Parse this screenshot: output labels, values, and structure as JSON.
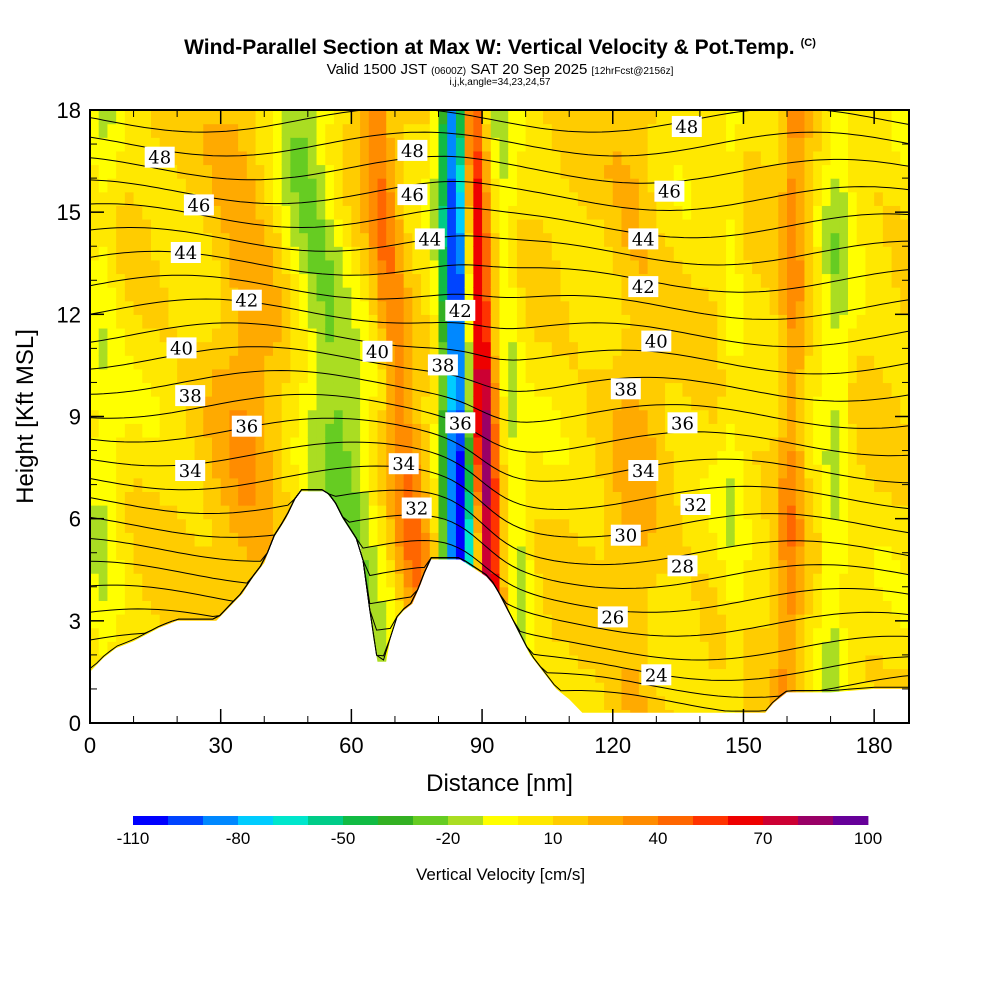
{
  "header": {
    "title": "Wind-Parallel Section at Max W: Vertical Velocity & Pot.Temp.",
    "title_corner": "(C)",
    "valid_pre": "Valid 1500 JST",
    "valid_utc": "(0600Z)",
    "valid_date": "SAT 20 Sep 2025",
    "forecast": "[12hrFcst@2156z]",
    "params": "i,j,k,angle=34,23,24,57"
  },
  "chart_data": {
    "type": "heatmap",
    "xlabel": "Distance [nm]",
    "ylabel": "Height [Kft MSL]",
    "xlim": [
      0,
      188
    ],
    "ylim": [
      0,
      18
    ],
    "x_ticks": [
      0,
      30,
      60,
      90,
      120,
      150,
      180
    ],
    "y_ticks": [
      0,
      3,
      6,
      9,
      12,
      15,
      18
    ],
    "colorbar": {
      "label": "Vertical Velocity [cm/s]",
      "tick_values": [
        -110,
        -80,
        -50,
        -20,
        10,
        40,
        70,
        100
      ],
      "levels": [
        -110,
        -100,
        -90,
        -80,
        -70,
        -60,
        -50,
        -40,
        -30,
        -20,
        -10,
        0,
        10,
        20,
        30,
        40,
        50,
        60,
        70,
        80,
        90,
        100
      ],
      "colors": [
        "#0000ff",
        "#0044ff",
        "#0088ff",
        "#00ccff",
        "#00e6cc",
        "#00cc88",
        "#11bb44",
        "#33b022",
        "#66cc22",
        "#aadd22",
        "#ffff00",
        "#ffe800",
        "#ffcc00",
        "#ffaa00",
        "#ff8c00",
        "#ff6600",
        "#ff3300",
        "#ee0000",
        "#cc0033",
        "#990066",
        "#660099"
      ]
    },
    "terrain_kft": [
      [
        0,
        1.5
      ],
      [
        3,
        1.9
      ],
      [
        6,
        2.2
      ],
      [
        10,
        2.4
      ],
      [
        13,
        2.6
      ],
      [
        16,
        2.8
      ],
      [
        20,
        3.0
      ],
      [
        26,
        3.0
      ],
      [
        29,
        3.0
      ],
      [
        32,
        3.4
      ],
      [
        35,
        3.8
      ],
      [
        37,
        4.2
      ],
      [
        40,
        4.7
      ],
      [
        42,
        5.4
      ],
      [
        45,
        6.0
      ],
      [
        48,
        6.8
      ],
      [
        54,
        6.8
      ],
      [
        56,
        6.5
      ],
      [
        58,
        6.0
      ],
      [
        60,
        5.6
      ],
      [
        62,
        5.2
      ],
      [
        63,
        4.5
      ],
      [
        64,
        3.5
      ],
      [
        65,
        2.5
      ],
      [
        66,
        1.8
      ],
      [
        68,
        1.8
      ],
      [
        69,
        2.5
      ],
      [
        70,
        3.0
      ],
      [
        72,
        3.3
      ],
      [
        74,
        3.5
      ],
      [
        76,
        4.1
      ],
      [
        78,
        4.8
      ],
      [
        82,
        4.8
      ],
      [
        85,
        4.8
      ],
      [
        91,
        4.3
      ],
      [
        93,
        4.0
      ],
      [
        95,
        3.5
      ],
      [
        97,
        3.0
      ],
      [
        99,
        2.5
      ],
      [
        101,
        2.0
      ],
      [
        104,
        1.5
      ],
      [
        107,
        1.0
      ],
      [
        110,
        0.7
      ],
      [
        113,
        0.3
      ],
      [
        120,
        0.3
      ],
      [
        130,
        0.3
      ],
      [
        150,
        0.3
      ],
      [
        155,
        0.3
      ],
      [
        157,
        0.6
      ],
      [
        160,
        0.9
      ],
      [
        170,
        0.9
      ],
      [
        180,
        1.0
      ],
      [
        188,
        1.0
      ]
    ],
    "features": [
      {
        "x_base": 85,
        "x_top": 84,
        "half_width": 3.5,
        "w": -115
      },
      {
        "x_base": 93,
        "x_top": 87,
        "half_width": 3.0,
        "w": 80
      },
      {
        "x_base": 65,
        "x_top": 48,
        "half_width": 7.0,
        "w": -30
      },
      {
        "x_base": 78,
        "x_top": 65,
        "half_width": 4.0,
        "w": 30
      },
      {
        "x_base": 37,
        "x_top": 35,
        "half_width": 8.0,
        "w": 18
      },
      {
        "x_base": 3,
        "x_top": 3,
        "half_width": 4.0,
        "w": -15
      },
      {
        "x_base": 100,
        "x_top": 94,
        "half_width": 3.0,
        "w": -18
      },
      {
        "x_base": 160,
        "x_top": 162,
        "half_width": 3.0,
        "w": 25
      },
      {
        "x_base": 148,
        "x_top": 147,
        "half_width": 2.5,
        "w": -12
      },
      {
        "x_base": 170,
        "x_top": 172,
        "half_width": 3.5,
        "w": -20
      },
      {
        "x_base": 125,
        "x_top": 125,
        "half_width": 6.0,
        "w": 12
      }
    ],
    "theta_left_kft": [
      1.6,
      2.3,
      3.0,
      3.7,
      4.4,
      5.1,
      5.8,
      6.5,
      7.2,
      7.9,
      8.6,
      9.3,
      10.0,
      10.7,
      11.4,
      12.1,
      12.8,
      13.5,
      14.2,
      14.9,
      15.6,
      16.3,
      17.0,
      17.7
    ],
    "theta_right_kft": [
      0.6,
      1.1,
      1.6,
      2.2,
      2.9,
      3.6,
      4.3,
      5.0,
      5.8,
      6.6,
      7.4,
      8.2,
      9.0,
      9.8,
      10.6,
      11.4,
      12.2,
      13.0,
      13.8,
      14.6,
      15.4,
      16.2,
      17.0,
      17.7
    ],
    "theta_labels": [
      {
        "text": "48",
        "x": 16,
        "y": 16.6
      },
      {
        "text": "46",
        "x": 25,
        "y": 15.2
      },
      {
        "text": "44",
        "x": 22,
        "y": 13.8
      },
      {
        "text": "42",
        "x": 36,
        "y": 12.4
      },
      {
        "text": "40",
        "x": 21,
        "y": 11.0
      },
      {
        "text": "38",
        "x": 23,
        "y": 9.6
      },
      {
        "text": "36",
        "x": 36,
        "y": 8.7
      },
      {
        "text": "34",
        "x": 23,
        "y": 7.4
      },
      {
        "text": "48",
        "x": 74,
        "y": 16.8
      },
      {
        "text": "46",
        "x": 74,
        "y": 15.5
      },
      {
        "text": "44",
        "x": 78,
        "y": 14.2
      },
      {
        "text": "42",
        "x": 85,
        "y": 12.1
      },
      {
        "text": "40",
        "x": 66,
        "y": 10.9
      },
      {
        "text": "38",
        "x": 81,
        "y": 10.5
      },
      {
        "text": "36",
        "x": 85,
        "y": 8.8
      },
      {
        "text": "34",
        "x": 72,
        "y": 7.6
      },
      {
        "text": "32",
        "x": 75,
        "y": 6.3
      },
      {
        "text": "48",
        "x": 137,
        "y": 17.5
      },
      {
        "text": "46",
        "x": 133,
        "y": 15.6
      },
      {
        "text": "44",
        "x": 127,
        "y": 14.2
      },
      {
        "text": "42",
        "x": 127,
        "y": 12.8
      },
      {
        "text": "40",
        "x": 130,
        "y": 11.2
      },
      {
        "text": "38",
        "x": 123,
        "y": 9.8
      },
      {
        "text": "36",
        "x": 136,
        "y": 8.8
      },
      {
        "text": "34",
        "x": 127,
        "y": 7.4
      },
      {
        "text": "32",
        "x": 139,
        "y": 6.4
      },
      {
        "text": "30",
        "x": 123,
        "y": 5.5
      },
      {
        "text": "28",
        "x": 136,
        "y": 4.6
      },
      {
        "text": "26",
        "x": 120,
        "y": 3.1
      },
      {
        "text": "24",
        "x": 130,
        "y": 1.4
      }
    ]
  }
}
